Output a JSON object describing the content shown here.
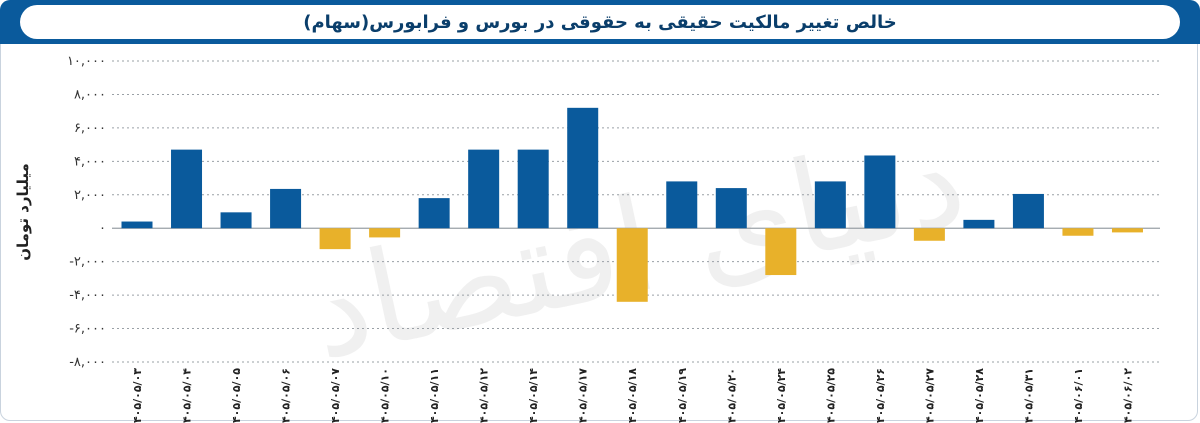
{
  "header": {
    "title": "خالص تغییر مالکیت حقیقی به حقوقی در بورس و فرابورس(سهام)"
  },
  "watermark": "دنیای اقتصاد",
  "colors": {
    "header_bg": "#0a5a9c",
    "positive": "#0a5a9c",
    "negative": "#e8b12a",
    "grid": "#9aa0a6"
  },
  "chart_data": {
    "type": "bar",
    "title": "خالص تغییر مالکیت حقیقی به حقوقی در بورس و فرابورس(سهام)",
    "ylabel": "میلیارد تومان",
    "xlabel": "",
    "ylim": [
      -8000,
      10000
    ],
    "yticks": [
      10000,
      8000,
      6000,
      4000,
      2000,
      0,
      -2000,
      -4000,
      -6000,
      -8000
    ],
    "ytick_labels": [
      "۱۰,۰۰۰",
      "۸,۰۰۰",
      "۶,۰۰۰",
      "۴,۰۰۰",
      "۲,۰۰۰",
      "۰",
      "-۲,۰۰۰",
      "-۴,۰۰۰",
      "-۶,۰۰۰",
      "-۸,۰۰۰"
    ],
    "categories": [
      "۱۴۰۵/۰۵/۰۳",
      "۱۴۰۵/۰۵/۰۴",
      "۱۴۰۵/۰۵/۰۵",
      "۱۴۰۵/۰۵/۰۶",
      "۱۴۰۵/۰۵/۰۷",
      "۱۴۰۵/۰۵/۱۰",
      "۱۴۰۵/۰۵/۱۱",
      "۱۴۰۵/۰۵/۱۲",
      "۱۴۰۵/۰۵/۱۴",
      "۱۴۰۵/۰۵/۱۷",
      "۱۴۰۵/۰۵/۱۸",
      "۱۴۰۵/۰۵/۱۹",
      "۱۴۰۵/۰۵/۲۰",
      "۱۴۰۵/۰۵/۲۴",
      "۱۴۰۵/۰۵/۲۵",
      "۱۴۰۵/۰۵/۲۶",
      "۱۴۰۵/۰۵/۲۷",
      "۱۴۰۵/۰۵/۲۸",
      "۱۴۰۵/۰۵/۳۱",
      "۱۴۰۵/۰۶/۰۱",
      "۱۴۰۵/۰۶/۰۲"
    ],
    "values": [
      400,
      4700,
      950,
      2350,
      -1250,
      -550,
      1800,
      4700,
      4700,
      7200,
      -4400,
      2800,
      2400,
      -2800,
      2800,
      4350,
      -750,
      500,
      2050,
      -450,
      -250
    ],
    "grid": true,
    "legend": "none"
  }
}
